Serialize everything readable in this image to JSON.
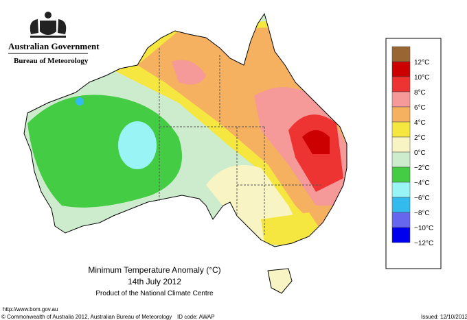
{
  "header": {
    "government": "Australian Government",
    "bureau": "Bureau of Meteorology"
  },
  "map": {
    "title": "Minimum Temperature Anomaly (°C)",
    "date": "14th July 2012",
    "credit": "Product of the National Climate Centre"
  },
  "legend": {
    "colors": [
      "#996633",
      "#cc0000",
      "#ee3333",
      "#f59999",
      "#f5b060",
      "#f5e640",
      "#f8f4c4",
      "#cdeccd",
      "#44cc44",
      "#99f5f5",
      "#33bbee",
      "#6666ee",
      "#0000ee"
    ],
    "labels": [
      "12°C",
      "10°C",
      "8°C",
      "6°C",
      "4°C",
      "2°C",
      "0°C",
      "−2°C",
      "−4°C",
      "−6°C",
      "−8°C",
      "−10°C",
      "−12°C"
    ]
  },
  "footer": {
    "url": "http://www.bom.gov.au",
    "copyright": "© Commonwealth of Australia 2012, Australian Bureau of Meteorology",
    "id": "ID code: AWAP",
    "issued": "Issued: 12/10/2012"
  }
}
